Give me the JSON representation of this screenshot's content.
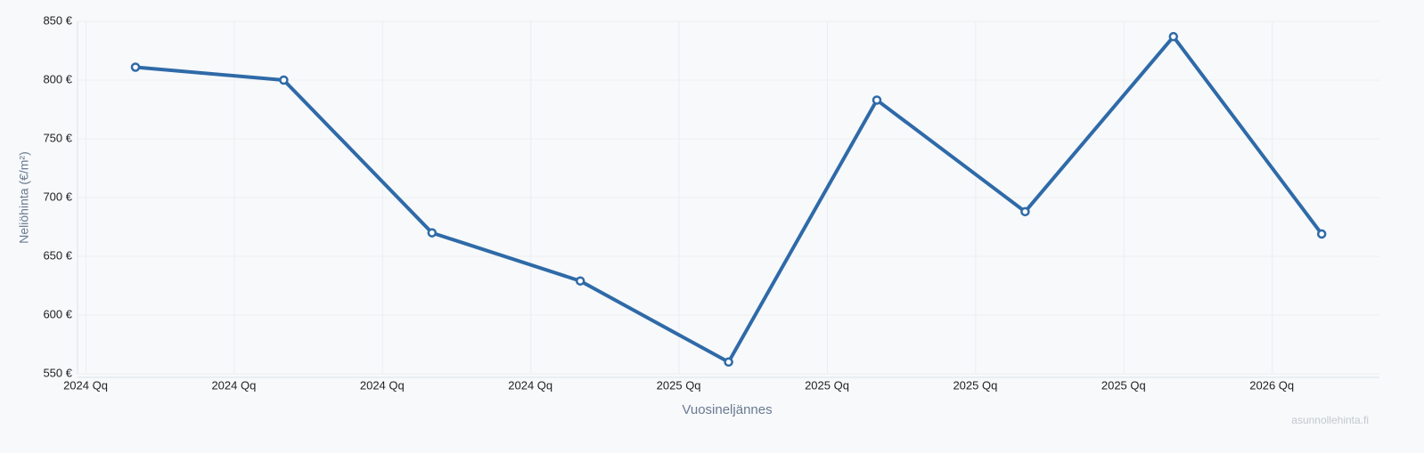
{
  "chart_data": {
    "type": "line",
    "x_label": "Vuosineljännes",
    "y_label": "Neliöhinta (€/m²)",
    "watermark": "asunnollehinta.fi",
    "categories": [
      "2024 Qq",
      "2024 Qq",
      "2024 Qq",
      "2024 Qq",
      "2025 Qq",
      "2025 Qq",
      "2025 Qq",
      "2025 Qq",
      "2026 Qq"
    ],
    "series": [
      {
        "name": "Neliöhinta",
        "color": "#2f6aa8",
        "values": [
          811,
          800,
          670,
          629,
          560,
          783,
          688,
          837,
          669
        ]
      }
    ],
    "ylim": [
      550,
      850
    ],
    "yticks": [
      {
        "value": 550,
        "label": "550 €"
      },
      {
        "value": 600,
        "label": "600 €"
      },
      {
        "value": 650,
        "label": "650 €"
      },
      {
        "value": 700,
        "label": "700 €"
      },
      {
        "value": 750,
        "label": "750 €"
      },
      {
        "value": 800,
        "label": "800 €"
      },
      {
        "value": 850,
        "label": "850 €"
      }
    ],
    "grid": true
  }
}
